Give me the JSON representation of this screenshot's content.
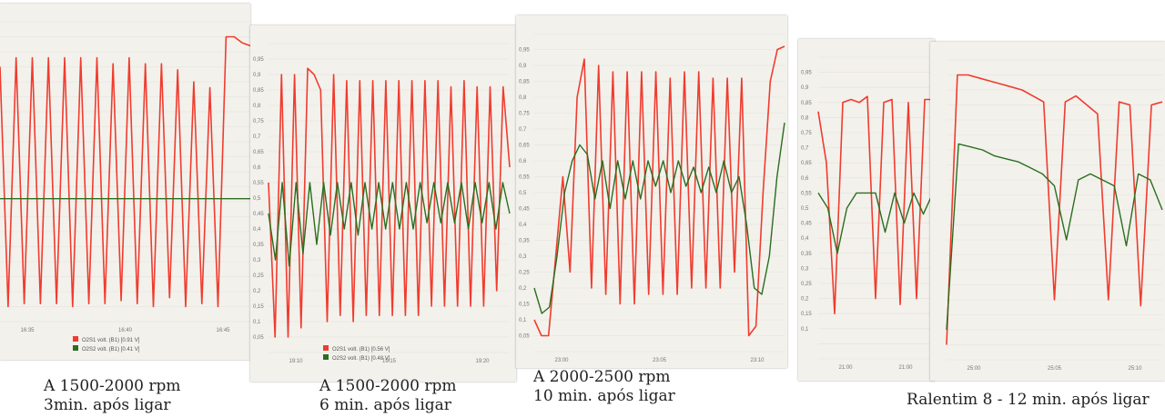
{
  "colors": {
    "o2s1": "#f03c2e",
    "o2s2": "#2a6e1f",
    "panel_bg": "#f3f1ec",
    "grid": "#e4e1da"
  },
  "captions": [
    {
      "line1": "A 1500-2000 rpm",
      "line2": "3min. após ligar"
    },
    {
      "line1": "A 1500-2000 rpm",
      "line2": "6 min. após ligar"
    },
    {
      "line1": "A 2000-2500 rpm",
      "line2": "10 min. após ligar"
    },
    {
      "line1": "Ralentim 8 - 12 min. após ligar",
      "line2": ""
    }
  ],
  "chart_data": [
    {
      "type": "line",
      "ylim": [
        0,
        1
      ],
      "x_ticks": [
        "16:35",
        "16:40",
        "16:45"
      ],
      "legend": [
        "O2S1 volt. (B1) [0.91 V]",
        "O2S2 volt. (B1) [0.41 V]"
      ],
      "series": [
        {
          "name": "O2S1 volt. (B1) [0.91 V]",
          "color": "o2s1",
          "values": [
            0.85,
            0.05,
            0.88,
            0.06,
            0.88,
            0.06,
            0.88,
            0.06,
            0.88,
            0.05,
            0.88,
            0.06,
            0.88,
            0.06,
            0.86,
            0.07,
            0.88,
            0.06,
            0.86,
            0.05,
            0.86,
            0.08,
            0.84,
            0.05,
            0.8,
            0.06,
            0.78,
            0.05,
            0.95,
            0.95,
            0.93,
            0.92
          ]
        },
        {
          "name": "O2S2 volt. (B1) [0.41 V]",
          "color": "o2s2",
          "values": [
            0.41,
            0.41,
            0.41,
            0.41,
            0.41,
            0.41,
            0.41,
            0.41,
            0.41,
            0.41,
            0.41,
            0.41,
            0.41,
            0.41,
            0.41,
            0.41,
            0.41,
            0.41,
            0.41,
            0.41,
            0.41,
            0.41,
            0.41,
            0.41
          ]
        }
      ]
    },
    {
      "type": "line",
      "ylim": [
        0,
        1
      ],
      "y_ticks": [
        "0,05",
        "0,1",
        "0,15",
        "0,2",
        "0,25",
        "0,3",
        "0,35",
        "0,4",
        "0,45",
        "0,5",
        "0,55",
        "0,6",
        "0,65",
        "0,7",
        "0,75",
        "0,8",
        "0,85",
        "0,9",
        "0,95"
      ],
      "x_ticks": [
        "19:10",
        "19:15",
        "19:20"
      ],
      "legend": [
        "O2S1 volt. (B1) [0.56 V]",
        "O2S2 volt. (B1) [0.48 V]"
      ],
      "series": [
        {
          "name": "O2S1 volt. (B1) [0.56 V]",
          "color": "o2s1",
          "values": [
            0.55,
            0.05,
            0.9,
            0.05,
            0.9,
            0.08,
            0.92,
            0.9,
            0.85,
            0.1,
            0.9,
            0.12,
            0.88,
            0.1,
            0.88,
            0.12,
            0.88,
            0.12,
            0.88,
            0.12,
            0.88,
            0.12,
            0.88,
            0.12,
            0.88,
            0.15,
            0.88,
            0.15,
            0.86,
            0.15,
            0.88,
            0.15,
            0.86,
            0.15,
            0.86,
            0.2,
            0.86,
            0.6
          ]
        },
        {
          "name": "O2S2 volt. (B1) [0.48 V]",
          "color": "o2s2",
          "values": [
            0.45,
            0.3,
            0.55,
            0.28,
            0.55,
            0.32,
            0.55,
            0.35,
            0.55,
            0.38,
            0.55,
            0.4,
            0.55,
            0.38,
            0.55,
            0.4,
            0.55,
            0.4,
            0.55,
            0.4,
            0.55,
            0.4,
            0.55,
            0.42,
            0.55,
            0.42,
            0.55,
            0.42,
            0.55,
            0.4,
            0.55,
            0.42,
            0.55,
            0.4,
            0.55,
            0.45
          ]
        }
      ]
    },
    {
      "type": "line",
      "ylim": [
        0,
        1
      ],
      "y_ticks": [
        "0,05",
        "0,1",
        "0,15",
        "0,2",
        "0,25",
        "0,3",
        "0,35",
        "0,4",
        "0,45",
        "0,5",
        "0,55",
        "0,6",
        "0,65",
        "0,7",
        "0,75",
        "0,8",
        "0,85",
        "0,9",
        "0,95"
      ],
      "x_ticks": [
        "23:00",
        "23:05",
        "23:10"
      ],
      "series": [
        {
          "name": "",
          "color": "o2s1",
          "values": [
            0.1,
            0.05,
            0.05,
            0.3,
            0.55,
            0.25,
            0.8,
            0.92,
            0.2,
            0.9,
            0.18,
            0.88,
            0.15,
            0.88,
            0.15,
            0.88,
            0.18,
            0.88,
            0.18,
            0.86,
            0.18,
            0.88,
            0.2,
            0.88,
            0.2,
            0.86,
            0.2,
            0.86,
            0.25,
            0.86,
            0.05,
            0.08,
            0.5,
            0.85,
            0.95,
            0.96
          ]
        },
        {
          "name": "",
          "color": "o2s2",
          "values": [
            0.2,
            0.12,
            0.14,
            0.3,
            0.5,
            0.6,
            0.65,
            0.62,
            0.48,
            0.6,
            0.45,
            0.6,
            0.48,
            0.6,
            0.48,
            0.6,
            0.52,
            0.6,
            0.5,
            0.6,
            0.52,
            0.58,
            0.5,
            0.58,
            0.5,
            0.6,
            0.5,
            0.55,
            0.4,
            0.2,
            0.18,
            0.3,
            0.55,
            0.72
          ]
        }
      ]
    },
    {
      "type": "line",
      "ylim": [
        0,
        1
      ],
      "y_ticks": [
        "0,1",
        "0,15",
        "0,2",
        "0,25",
        "0,3",
        "0,35",
        "0,4",
        "0,45",
        "0,5",
        "0,55",
        "0,6",
        "0,65",
        "0,7",
        "0,75",
        "0,8",
        "0,85",
        "0,9",
        "0,95"
      ],
      "x_ticks": [
        "21:00",
        "21:00"
      ],
      "series": [
        {
          "name": "",
          "color": "o2s1",
          "values": [
            0.82,
            0.65,
            0.15,
            0.85,
            0.86,
            0.85,
            0.87,
            0.2,
            0.85,
            0.86,
            0.18,
            0.85,
            0.2,
            0.86,
            0.86
          ]
        },
        {
          "name": "",
          "color": "o2s2",
          "values": [
            0.55,
            0.5,
            0.35,
            0.5,
            0.55,
            0.55,
            0.55,
            0.42,
            0.55,
            0.45,
            0.55,
            0.48,
            0.55
          ]
        }
      ]
    },
    {
      "type": "line",
      "ylim": [
        0,
        1
      ],
      "x_ticks": [
        "25:00",
        "25:05",
        "25:10"
      ],
      "series": [
        {
          "name": "",
          "color": "o2s1",
          "values": [
            0.05,
            0.95,
            0.95,
            0.94,
            0.93,
            0.92,
            0.91,
            0.9,
            0.88,
            0.86,
            0.2,
            0.86,
            0.88,
            0.85,
            0.82,
            0.2,
            0.86,
            0.85,
            0.18,
            0.85,
            0.86
          ]
        },
        {
          "name": "",
          "color": "o2s2",
          "values": [
            0.1,
            0.72,
            0.71,
            0.7,
            0.68,
            0.67,
            0.66,
            0.64,
            0.62,
            0.58,
            0.4,
            0.6,
            0.62,
            0.6,
            0.58,
            0.38,
            0.62,
            0.6,
            0.5
          ]
        }
      ]
    }
  ]
}
